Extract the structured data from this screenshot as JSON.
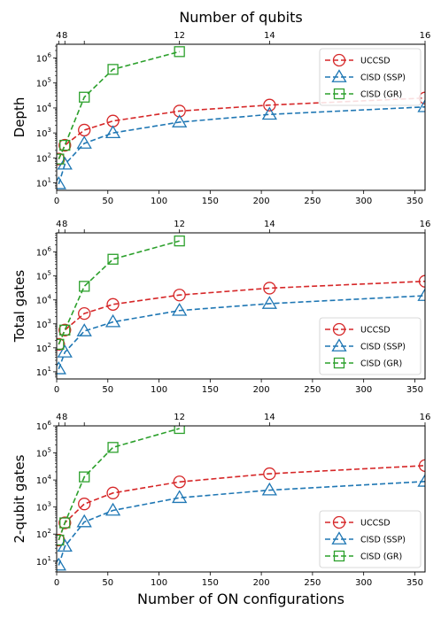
{
  "figure": {
    "top_axis_label": "Number of qubits",
    "bottom_axis_label": "Number of ON configurations"
  },
  "colors": {
    "UCCSD": "#d62728",
    "CISD (SSP)": "#1f77b4",
    "CISD (GR)": "#2ca02c"
  },
  "chart_data": [
    {
      "type": "line",
      "ylabel": "Depth",
      "yscale": "log",
      "xlim": [
        0,
        360
      ],
      "ylim_exp": [
        0.7,
        6.55
      ],
      "legend_position": "top-right",
      "x_ticks": [
        0,
        50,
        100,
        150,
        200,
        250,
        300,
        350
      ],
      "top_ticks": {
        "positions": [
          2,
          8,
          27,
          120,
          208,
          360
        ],
        "labels": [
          "4",
          "8",
          "",
          "12",
          "14",
          "16"
        ]
      },
      "series": [
        {
          "name": "UCCSD",
          "marker": "circle",
          "x": [
            2,
            8,
            27,
            55,
            120,
            208,
            360
          ],
          "y": [
            90,
            320,
            1300,
            3000,
            7500,
            13000,
            25000
          ]
        },
        {
          "name": "CISD (SSP)",
          "marker": "triangle",
          "x": [
            2,
            8,
            27,
            55,
            120,
            208,
            360
          ],
          "y": [
            9,
            55,
            380,
            1000,
            2700,
            5500,
            11000
          ]
        },
        {
          "name": "CISD (GR)",
          "marker": "square",
          "x": [
            2,
            8,
            27,
            55,
            120
          ],
          "y": [
            90,
            320,
            27000,
            350000,
            1800000
          ]
        }
      ]
    },
    {
      "type": "line",
      "ylabel": "Total gates",
      "yscale": "log",
      "xlim": [
        0,
        360
      ],
      "ylim_exp": [
        0.7,
        6.8
      ],
      "legend_position": "bottom-right",
      "x_ticks": [
        0,
        50,
        100,
        150,
        200,
        250,
        300,
        350
      ],
      "top_ticks": {
        "positions": [
          2,
          8,
          27,
          120,
          208,
          360
        ],
        "labels": [
          "4",
          "8",
          "",
          "12",
          "14",
          "16"
        ]
      },
      "series": [
        {
          "name": "UCCSD",
          "marker": "circle",
          "x": [
            2,
            8,
            27,
            55,
            120,
            208,
            360
          ],
          "y": [
            140,
            550,
            2700,
            6500,
            16000,
            31000,
            60000
          ]
        },
        {
          "name": "CISD (SSP)",
          "marker": "triangle",
          "x": [
            2,
            8,
            27,
            55,
            120,
            208,
            360
          ],
          "y": [
            13,
            65,
            500,
            1200,
            3600,
            7000,
            15000
          ]
        },
        {
          "name": "CISD (GR)",
          "marker": "square",
          "x": [
            2,
            8,
            27,
            55,
            120
          ],
          "y": [
            140,
            550,
            37000,
            500000,
            2900000
          ]
        }
      ]
    },
    {
      "type": "line",
      "ylabel": "2-qubit gates",
      "yscale": "log",
      "xlim": [
        0,
        360
      ],
      "ylim_exp": [
        0.6,
        6.0
      ],
      "legend_position": "bottom-right",
      "x_ticks": [
        0,
        50,
        100,
        150,
        200,
        250,
        300,
        350
      ],
      "top_ticks": {
        "positions": [
          2,
          8,
          27,
          120,
          208,
          360
        ],
        "labels": [
          "4",
          "8",
          "",
          "12",
          "14",
          "16"
        ]
      },
      "series": [
        {
          "name": "UCCSD",
          "marker": "circle",
          "x": [
            2,
            8,
            27,
            55,
            120,
            208,
            360
          ],
          "y": [
            60,
            260,
            1300,
            3300,
            8500,
            17000,
            34000
          ]
        },
        {
          "name": "CISD (SSP)",
          "marker": "triangle",
          "x": [
            2,
            8,
            27,
            55,
            120,
            208,
            360
          ],
          "y": [
            7,
            35,
            280,
            750,
            2200,
            4200,
            8800
          ]
        },
        {
          "name": "CISD (GR)",
          "marker": "square",
          "x": [
            2,
            8,
            27,
            55,
            120
          ],
          "y": [
            60,
            260,
            13000,
            160000,
            800000
          ]
        }
      ]
    }
  ]
}
